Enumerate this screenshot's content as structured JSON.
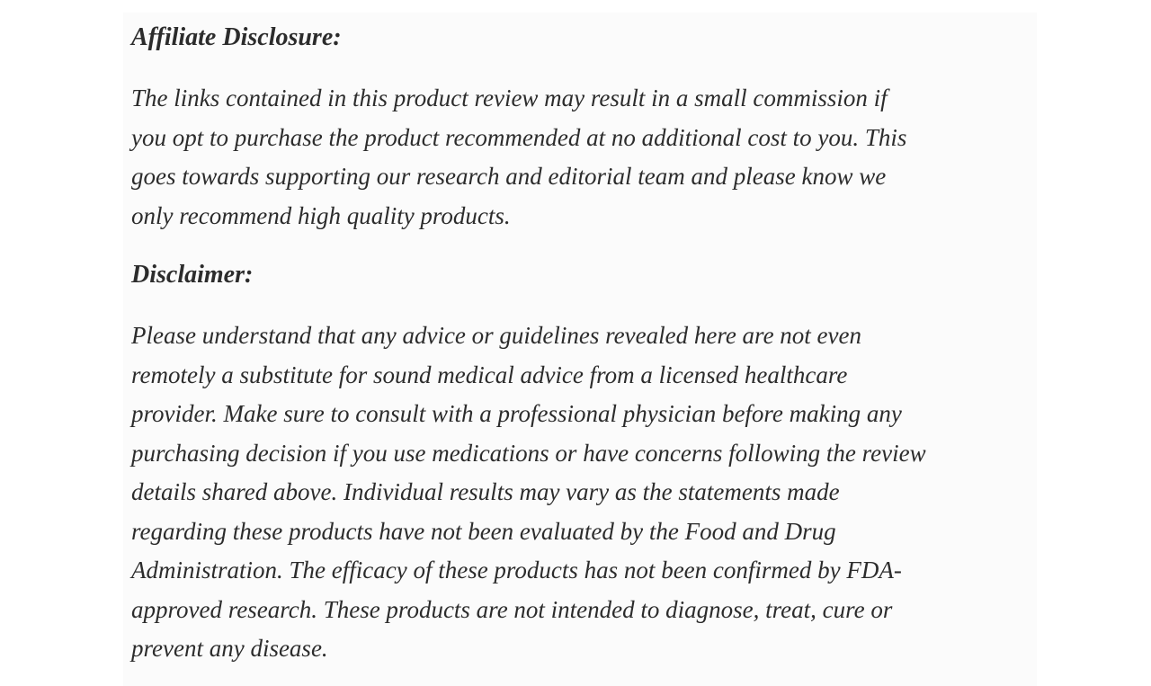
{
  "page": {
    "background_color": "#ffffff",
    "card_background_color": "#fbfbfb",
    "text_color": "#2c2c2c"
  },
  "article": {
    "sections": [
      {
        "heading": "Affiliate Disclosure:",
        "body_lines": [
          "The links contained in this product review may result in a small commission if",
          "you opt to purchase the product recommended at no additional cost to you. This",
          "goes towards supporting our research and editorial team and please know we",
          "only recommend high quality products."
        ]
      },
      {
        "heading": "Disclaimer:",
        "body_lines": [
          "Please understand that any advice or guidelines revealed here are not even",
          "remotely a substitute for sound medical advice from a licensed healthcare",
          "provider. Make sure to consult with a professional physician before making any",
          "purchasing decision if you use medications or have concerns following the review",
          "details shared above. Individual results may vary as the statements made",
          "regarding these products have not been evaluated by the Food and Drug",
          "Administration. The efficacy of these products has not been confirmed by FDA-",
          "approved research. These products are not intended to diagnose, treat, cure or",
          "prevent any disease."
        ]
      }
    ]
  }
}
